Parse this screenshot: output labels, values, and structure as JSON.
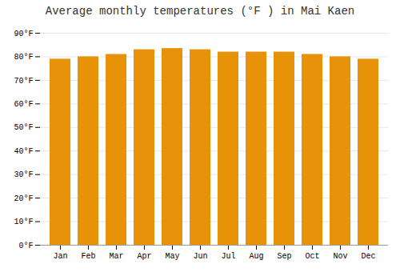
{
  "chart_data": {
    "type": "bar",
    "title": "Average monthly temperatures (°F ) in Mai Kaen",
    "categories": [
      "Jan",
      "Feb",
      "Mar",
      "Apr",
      "May",
      "Jun",
      "Jul",
      "Aug",
      "Sep",
      "Oct",
      "Nov",
      "Dec"
    ],
    "values": [
      79,
      80,
      81,
      83,
      83.5,
      83,
      82,
      82,
      82,
      81,
      80,
      79
    ],
    "color": "#E8920A",
    "ylim": [
      0,
      90
    ],
    "yticks": [
      {
        "value": 0,
        "label": "0°F"
      },
      {
        "value": 10,
        "label": "10°F"
      },
      {
        "value": 20,
        "label": "20°F"
      },
      {
        "value": 30,
        "label": "30°F"
      },
      {
        "value": 40,
        "label": "40°F"
      },
      {
        "value": 50,
        "label": "50°F"
      },
      {
        "value": 60,
        "label": "60°F"
      },
      {
        "value": 70,
        "label": "70°F"
      },
      {
        "value": 80,
        "label": "80°F"
      },
      {
        "value": 90,
        "label": "90°F"
      }
    ],
    "grid": true
  }
}
